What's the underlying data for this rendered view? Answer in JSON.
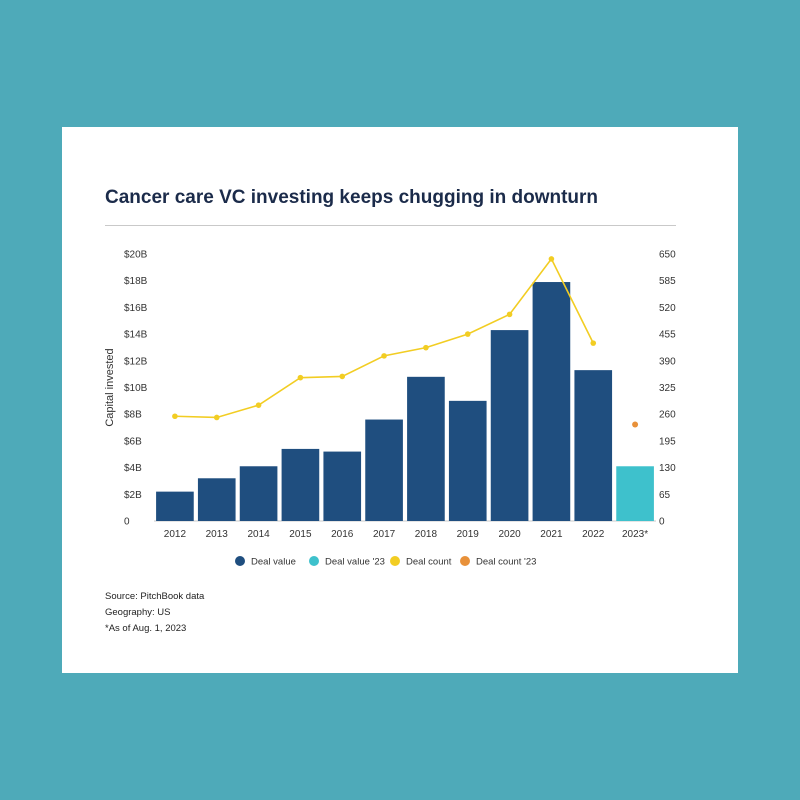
{
  "chart_data": {
    "type": "bar",
    "title": "Cancer care VC investing keeps chugging in downturn",
    "ylabel": "Capital invested",
    "y2label": "",
    "categories": [
      "2012",
      "2013",
      "2014",
      "2015",
      "2016",
      "2017",
      "2018",
      "2019",
      "2020",
      "2021",
      "2022",
      "2023*"
    ],
    "series": [
      {
        "name": "Deal value",
        "type": "bar",
        "axis": "left",
        "color": "#1f4e7f",
        "values": [
          2.2,
          3.2,
          4.1,
          5.4,
          5.2,
          7.6,
          10.8,
          9.0,
          14.3,
          17.9,
          11.3,
          null
        ]
      },
      {
        "name": "Deal value '23",
        "type": "bar",
        "axis": "left",
        "color": "#3ec1cc",
        "values": [
          null,
          null,
          null,
          null,
          null,
          null,
          null,
          null,
          null,
          null,
          null,
          4.1
        ]
      },
      {
        "name": "Deal count",
        "type": "line",
        "axis": "right",
        "color": "#f2cd23",
        "values": [
          255,
          252,
          282,
          349,
          352,
          402,
          422,
          455,
          503,
          638,
          433,
          null
        ]
      },
      {
        "name": "Deal count '23",
        "type": "point",
        "axis": "right",
        "color": "#e8913a",
        "values": [
          null,
          null,
          null,
          null,
          null,
          null,
          null,
          null,
          null,
          null,
          null,
          235
        ]
      }
    ],
    "ylim": [
      0,
      20
    ],
    "y2lim": [
      0,
      650
    ],
    "yticks": [
      "0",
      "$2B",
      "$4B",
      "$6B",
      "$8B",
      "$10B",
      "$12B",
      "$14B",
      "$16B",
      "$18B",
      "$20B"
    ],
    "y2ticks": [
      "0",
      "65",
      "130",
      "195",
      "260",
      "325",
      "390",
      "455",
      "520",
      "585",
      "650"
    ],
    "legend_position": "bottom"
  },
  "footnotes": [
    "Source: PitchBook data",
    "Geography: US",
    "*As of Aug. 1, 2023"
  ]
}
